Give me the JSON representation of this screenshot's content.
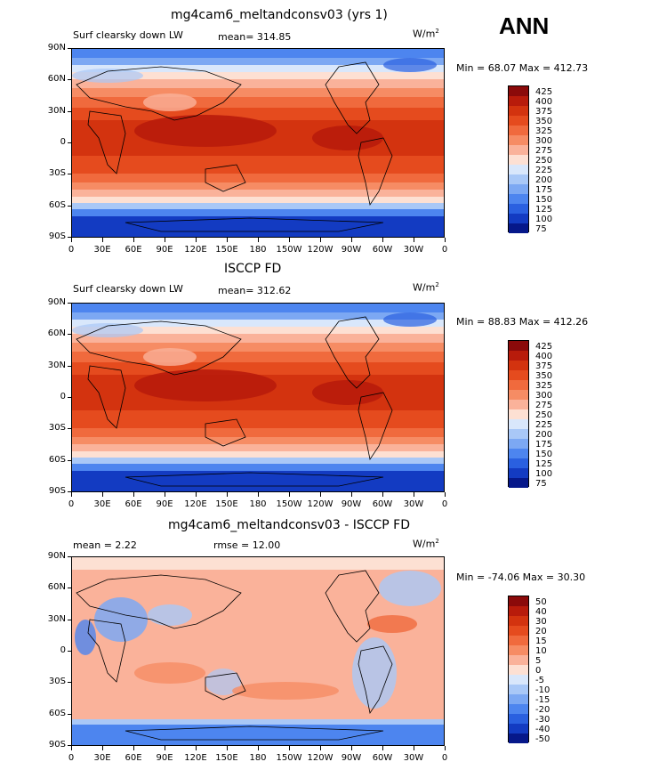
{
  "season": "ANN",
  "panels": [
    {
      "title": "mg4cam6_meltandconsv03 (yrs 1)",
      "variable": "Surf clearsky down LW",
      "stat": "mean= 314.85",
      "units": "W/m",
      "units_sup": "2",
      "minmax": "Min =   68.07 Max = 412.73",
      "levels": [
        "425",
        "400",
        "375",
        "350",
        "325",
        "300",
        "275",
        "250",
        "225",
        "200",
        "175",
        "150",
        "125",
        "100",
        "75"
      ],
      "colors": [
        "#8b0a0a",
        "#b81b0b",
        "#d3330f",
        "#e54b1e",
        "#f06a3d",
        "#f68c64",
        "#fab29a",
        "#fde0d3",
        "#d9e7fb",
        "#a9c8f7",
        "#7ca8f3",
        "#4d85ef",
        "#2a60e0",
        "#133bc2",
        "#06188a"
      ]
    },
    {
      "title": "ISCCP FD",
      "variable": "Surf clearsky down LW",
      "stat": "mean= 312.62",
      "units": "W/m",
      "units_sup": "2",
      "minmax": "Min =   88.83 Max = 412.26",
      "levels": [
        "425",
        "400",
        "375",
        "350",
        "325",
        "300",
        "275",
        "250",
        "225",
        "200",
        "175",
        "150",
        "125",
        "100",
        "75"
      ],
      "colors": [
        "#8b0a0a",
        "#b81b0b",
        "#d3330f",
        "#e54b1e",
        "#f06a3d",
        "#f68c64",
        "#fab29a",
        "#fde0d3",
        "#d9e7fb",
        "#a9c8f7",
        "#7ca8f3",
        "#4d85ef",
        "#2a60e0",
        "#133bc2",
        "#06188a"
      ]
    },
    {
      "title": "mg4cam6_meltandconsv03 - ISCCP FD",
      "variable": "",
      "stat": "mean =     2.22",
      "stat2": "rmse =   12.00",
      "units": "W/m",
      "units_sup": "2",
      "minmax": "Min = -74.06 Max =   30.30",
      "levels": [
        "50",
        "40",
        "30",
        "20",
        "15",
        "10",
        "5",
        "0",
        "-5",
        "-10",
        "-15",
        "-20",
        "-30",
        "-40",
        "-50"
      ],
      "colors": [
        "#8b0a0a",
        "#b81b0b",
        "#d3330f",
        "#e54b1e",
        "#f06a3d",
        "#f68c64",
        "#fab29a",
        "#fde0d3",
        "#d9e7fb",
        "#a9c8f7",
        "#7ca8f3",
        "#4d85ef",
        "#2a60e0",
        "#133bc2",
        "#06188a"
      ]
    }
  ],
  "lat_ticks": [
    "90N",
    "60N",
    "30N",
    "0",
    "30S",
    "60S",
    "90S"
  ],
  "lon_ticks": [
    "0",
    "30E",
    "60E",
    "90E",
    "120E",
    "150E",
    "180",
    "150W",
    "120W",
    "90W",
    "60W",
    "30W",
    "0"
  ]
}
